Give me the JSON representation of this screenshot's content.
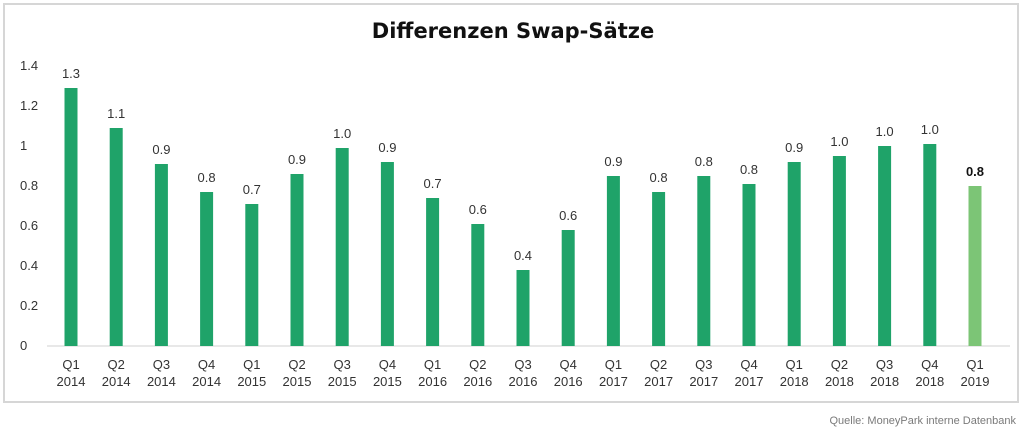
{
  "chart_data": {
    "type": "bar",
    "title": "Differenzen Swap-Sätze",
    "xlabel": "",
    "ylabel": "",
    "ylim": [
      0,
      1.4
    ],
    "yticks": [
      "0",
      "0.2",
      "0.4",
      "0.6",
      "0.8",
      "1",
      "1.2",
      "1.4"
    ],
    "categories": [
      [
        "Q1",
        "2014"
      ],
      [
        "Q2",
        "2014"
      ],
      [
        "Q3",
        "2014"
      ],
      [
        "Q4",
        "2014"
      ],
      [
        "Q1",
        "2015"
      ],
      [
        "Q2",
        "2015"
      ],
      [
        "Q3",
        "2015"
      ],
      [
        "Q4",
        "2015"
      ],
      [
        "Q1",
        "2016"
      ],
      [
        "Q2",
        "2016"
      ],
      [
        "Q3",
        "2016"
      ],
      [
        "Q4",
        "2016"
      ],
      [
        "Q1",
        "2017"
      ],
      [
        "Q2",
        "2017"
      ],
      [
        "Q3",
        "2017"
      ],
      [
        "Q4",
        "2017"
      ],
      [
        "Q1",
        "2018"
      ],
      [
        "Q2",
        "2018"
      ],
      [
        "Q3",
        "2018"
      ],
      [
        "Q4",
        "2018"
      ],
      [
        "Q1",
        "2019"
      ]
    ],
    "values": [
      1.29,
      1.09,
      0.91,
      0.77,
      0.71,
      0.86,
      0.99,
      0.92,
      0.74,
      0.61,
      0.38,
      0.58,
      0.85,
      0.77,
      0.85,
      0.81,
      0.92,
      0.95,
      1.0,
      1.01,
      0.8
    ],
    "data_labels": [
      "1.3",
      "1.1",
      "0.9",
      "0.8",
      "0.7",
      "0.9",
      "1.0",
      "0.9",
      "0.7",
      "0.6",
      "0.4",
      "0.6",
      "0.9",
      "0.8",
      "0.8",
      "0.8",
      "0.9",
      "1.0",
      "1.0",
      "1.0",
      "0.8"
    ],
    "highlight_index": 20,
    "colors": {
      "bar": "#1fa369",
      "highlight": "#7cc576"
    },
    "grid": false,
    "legend": "none"
  },
  "source": "Quelle: MoneyPark interne Datenbank"
}
